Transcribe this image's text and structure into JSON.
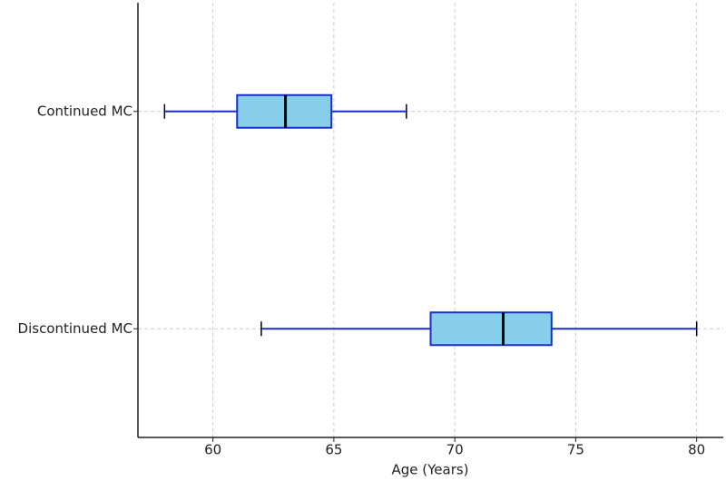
{
  "chart_data": {
    "type": "boxplot",
    "orientation": "horizontal",
    "xlabel": "Age (Years)",
    "categories": [
      "Continued MC",
      "Discontinued MC"
    ],
    "min": [
      58,
      62
    ],
    "q1": [
      61,
      69
    ],
    "median": [
      63,
      72
    ],
    "q3": [
      64.9,
      74
    ],
    "max": [
      68,
      80
    ],
    "box_color": "#87ceeb",
    "edge_color": "#1a2fcc",
    "median_color": "#000000",
    "xlim": [
      56.9,
      81.1
    ],
    "xticks": [
      60,
      65,
      70,
      75,
      80
    ],
    "grid": true
  }
}
